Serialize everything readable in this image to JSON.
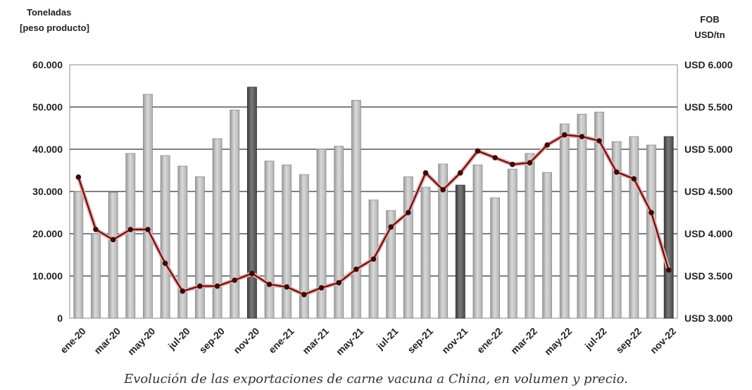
{
  "chart_data": {
    "type": "bar+line",
    "left_axis_title_line1": "Toneladas",
    "left_axis_title_line2": "[peso producto]",
    "right_axis_title_line1": "FOB",
    "right_axis_title_line2": "USD/tn",
    "caption": "Evolución de las exportaciones de carne vacuna a China, en volumen y precio.",
    "ylim_left": [
      0,
      60000
    ],
    "ylim_right": [
      3000,
      6000
    ],
    "y_left_ticks": [
      {
        "value": 0,
        "label": "0"
      },
      {
        "value": 10000,
        "label": "10.000"
      },
      {
        "value": 20000,
        "label": "20.000"
      },
      {
        "value": 30000,
        "label": "30.000"
      },
      {
        "value": 40000,
        "label": "40.000"
      },
      {
        "value": 50000,
        "label": "50.000"
      },
      {
        "value": 60000,
        "label": "60.000"
      }
    ],
    "y_right_ticks": [
      {
        "value": 3000,
        "label": "USD 3.000"
      },
      {
        "value": 3500,
        "label": "USD 3.500"
      },
      {
        "value": 4000,
        "label": "USD 4.000"
      },
      {
        "value": 4500,
        "label": "USD 4.500"
      },
      {
        "value": 5000,
        "label": "USD 5.000"
      },
      {
        "value": 5500,
        "label": "USD 5.500"
      },
      {
        "value": 6000,
        "label": "USD 6.000"
      }
    ],
    "x_tick_labels": [
      {
        "index": 0,
        "label": "ene-20"
      },
      {
        "index": 2,
        "label": "mar-20"
      },
      {
        "index": 4,
        "label": "may-20"
      },
      {
        "index": 6,
        "label": "jul-20"
      },
      {
        "index": 8,
        "label": "sep-20"
      },
      {
        "index": 10,
        "label": "nov-20"
      },
      {
        "index": 12,
        "label": "ene-21"
      },
      {
        "index": 14,
        "label": "mar-21"
      },
      {
        "index": 16,
        "label": "may-21"
      },
      {
        "index": 18,
        "label": "jul-21"
      },
      {
        "index": 20,
        "label": "sep-21"
      },
      {
        "index": 22,
        "label": "nov-21"
      },
      {
        "index": 24,
        "label": "ene-22"
      },
      {
        "index": 26,
        "label": "mar-22"
      },
      {
        "index": 28,
        "label": "may-22"
      },
      {
        "index": 30,
        "label": "jul-22"
      },
      {
        "index": 32,
        "label": "sep-22"
      },
      {
        "index": 34,
        "label": "nov-22"
      }
    ],
    "grid": true,
    "highlighted_bar_indices": [
      10,
      22,
      34
    ],
    "series": [
      {
        "type": "bar",
        "axis": "left",
        "values": [
          30000,
          20000,
          29800,
          39000,
          53000,
          38500,
          36000,
          33500,
          42500,
          49300,
          54700,
          37200,
          36300,
          34000,
          40000,
          40700,
          51600,
          28000,
          25500,
          33500,
          31000,
          36500,
          31500,
          36300,
          28500,
          35300,
          39000,
          34500,
          46000,
          48300,
          48800,
          41800,
          43000,
          41000,
          43000
        ]
      },
      {
        "type": "line",
        "axis": "right",
        "values": [
          4670,
          4050,
          3930,
          4050,
          4050,
          3650,
          3320,
          3380,
          3380,
          3450,
          3530,
          3400,
          3370,
          3280,
          3360,
          3420,
          3580,
          3700,
          4080,
          4250,
          4720,
          4520,
          4720,
          4980,
          4900,
          4820,
          4840,
          5050,
          5170,
          5150,
          5100,
          4730,
          4650,
          4250,
          3570
        ]
      }
    ]
  }
}
